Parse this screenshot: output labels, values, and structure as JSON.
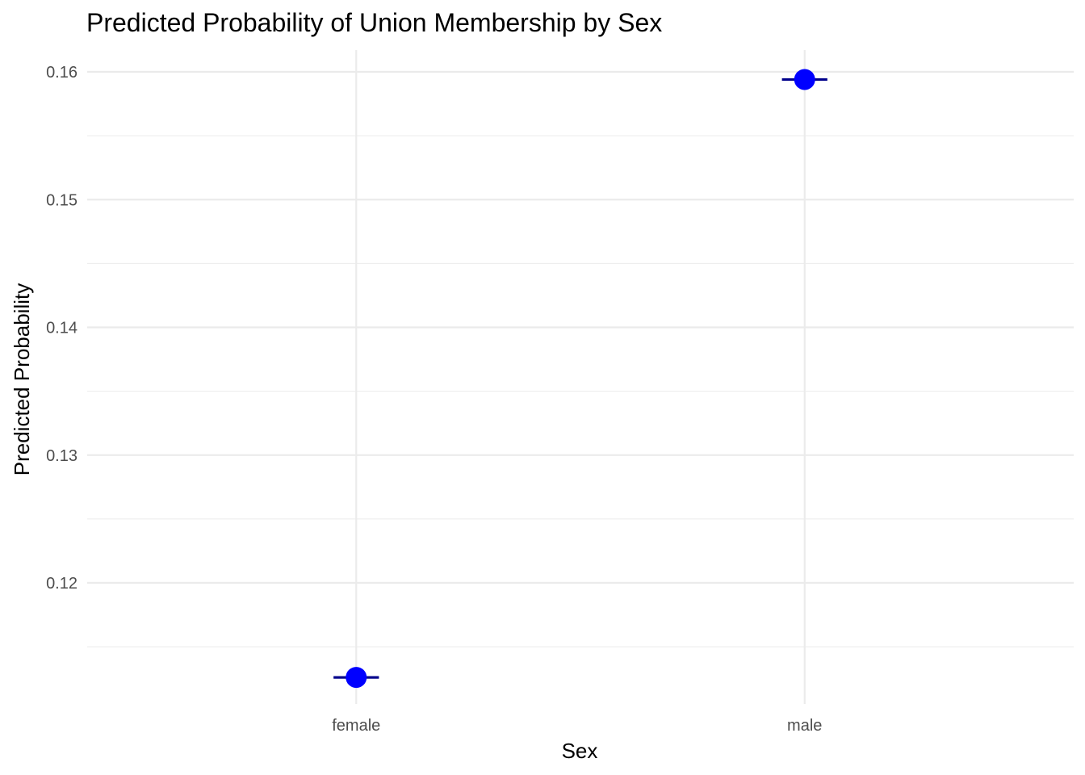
{
  "chart_data": {
    "type": "scatter",
    "title": "Predicted Probability of Union Membership by Sex",
    "xlabel": "Sex",
    "ylabel": "Predicted Probability",
    "categories": [
      "female",
      "male"
    ],
    "series": [
      {
        "values": [
          0.1126,
          0.1594
        ],
        "ci_low": [
          0.1126,
          0.1594
        ],
        "ci_high": [
          0.1126,
          0.1594
        ]
      }
    ],
    "ylim": [
      0.1145,
      0.1618
    ],
    "yticks": [
      0.12,
      0.13,
      0.14,
      0.15,
      0.16
    ],
    "ytick_labels": [
      "0.12",
      "0.13",
      "0.14",
      "0.15",
      "0.16"
    ],
    "grid": true,
    "legend": "none",
    "point_color": "#0000ff",
    "errorbar_color": "#00008b"
  }
}
